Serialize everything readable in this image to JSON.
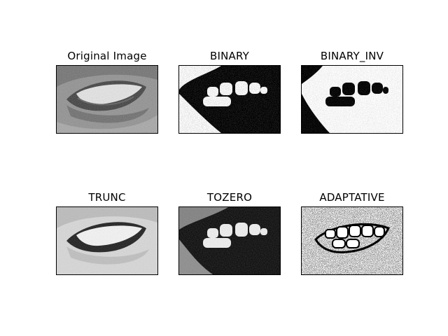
{
  "figure": {
    "panels": [
      {
        "key": "original",
        "title": "Original Image"
      },
      {
        "key": "binary",
        "title": "BINARY"
      },
      {
        "key": "binary_inv",
        "title": "BINARY_INV"
      },
      {
        "key": "trunc",
        "title": "TRUNC"
      },
      {
        "key": "tozero",
        "title": "TOZERO"
      },
      {
        "key": "adaptive",
        "title": "ADAPTATIVE"
      }
    ]
  }
}
